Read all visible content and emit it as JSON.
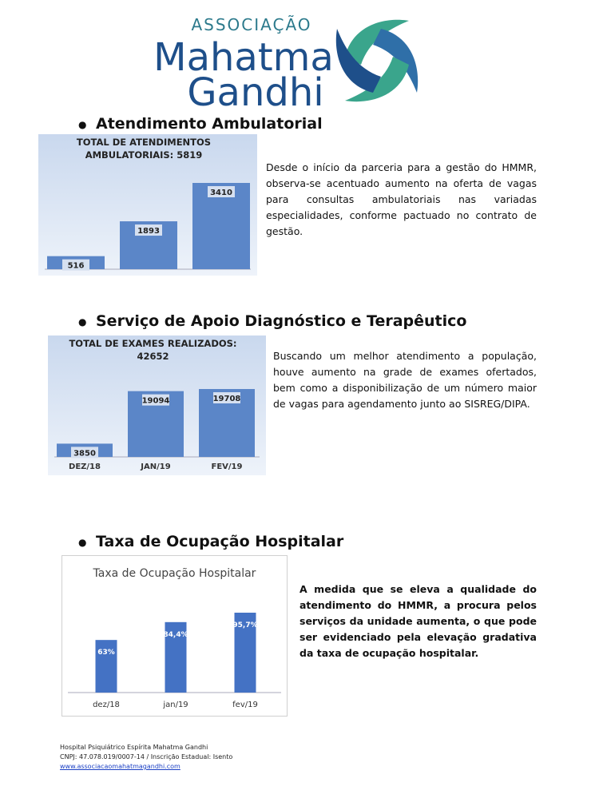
{
  "header": {
    "line1": "ASSOCIAÇÃO",
    "line2": "Mahatma",
    "line3": "Gandhi"
  },
  "sections": [
    {
      "heading": "Atendimento Ambulatorial",
      "chart": {
        "type": "bar",
        "title": "TOTAL DE ATENDIMENTOS AMBULATORIAIS: 5819",
        "values": [
          516,
          1893,
          3410
        ],
        "color": "#5b86c8"
      },
      "text": "Desde o início da parceria para a gestão do HMMR, observa-se acentuado aumento na oferta de vagas para consultas ambulatoriais nas variadas especialidades, conforme pactuado no contrato de gestão."
    },
    {
      "heading": "Serviço de Apoio Diagnóstico e Terapêutico",
      "chart": {
        "type": "bar",
        "title": "TOTAL DE EXAMES REALIZADOS: 42652",
        "categories": [
          "DEZ/18",
          "JAN/19",
          "FEV/19"
        ],
        "values": [
          3850,
          19094,
          19708
        ],
        "color": "#5b86c8"
      },
      "text": "Buscando um melhor atendimento a população, houve aumento na grade de exames ofertados, bem como a disponibilização de um número maior de vagas para agendamento junto ao SISREG/DIPA."
    },
    {
      "heading": "Taxa de Ocupação Hospitalar",
      "chart": {
        "type": "bar",
        "title": "Taxa de Ocupação Hospitalar",
        "categories": [
          "dez/18",
          "jan/19",
          "fev/19"
        ],
        "values": [
          63,
          84.4,
          95.7
        ],
        "value_labels": [
          "63%",
          "84,4%",
          "95,7%"
        ],
        "color": "#4472c4"
      },
      "text": "A medida que se eleva a qualidade do atendimento do HMMR, a procura pelos serviços da unidade aumenta, o que pode ser evidenciado pela elevação gradativa da taxa de ocupação hospitalar."
    }
  ],
  "footer": {
    "line1": "Hospital Psiquiátrico Espírita Mahatma Gandhi",
    "line2": "CNPJ: 47.078.019/0007-14 / Inscrição Estadual: Isento",
    "link": "www.associacaomahatmagandhi.com"
  }
}
